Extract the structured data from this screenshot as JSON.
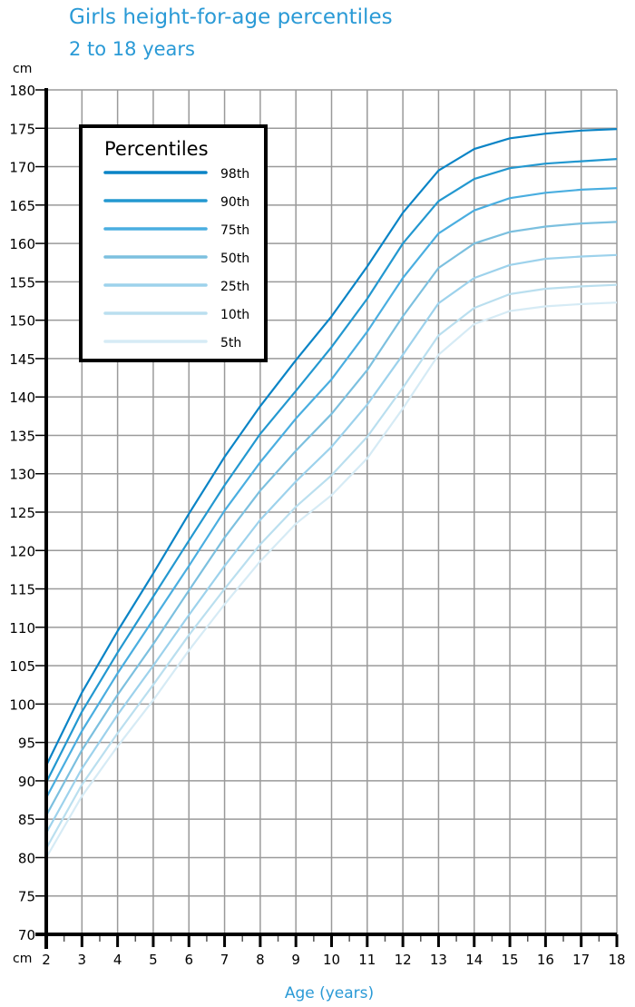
{
  "chart_data": {
    "type": "line",
    "title": "Girls height-for-age percentiles",
    "subtitle": "2 to 18 years",
    "xlabel": "Age (years)",
    "ylabel": "cm",
    "ylabel_bottom": "cm",
    "xlim": [
      2,
      18
    ],
    "ylim": [
      70,
      180
    ],
    "grid": true,
    "x_ticks": [
      2,
      3,
      4,
      5,
      6,
      7,
      8,
      9,
      10,
      11,
      12,
      13,
      14,
      15,
      16,
      17,
      18
    ],
    "y_ticks": [
      70,
      75,
      80,
      85,
      90,
      95,
      100,
      105,
      110,
      115,
      120,
      125,
      130,
      135,
      140,
      145,
      150,
      155,
      160,
      165,
      170,
      175,
      180
    ],
    "legend": {
      "title": "Percentiles",
      "placement": "top-left"
    },
    "x": [
      2,
      3,
      4,
      5,
      6,
      7,
      8,
      9,
      10,
      11,
      12,
      13,
      14,
      15,
      16,
      17,
      18
    ],
    "series": [
      {
        "name": "98th",
        "color": "#0a84c6",
        "values": [
          92,
          101.5,
          109.5,
          117,
          124.8,
          132.2,
          138.8,
          144.8,
          150.5,
          157,
          164,
          169.5,
          172.3,
          173.7,
          174.3,
          174.7,
          174.9
        ]
      },
      {
        "name": "90th",
        "color": "#2398d0",
        "values": [
          89.8,
          99,
          106.7,
          114,
          121.3,
          128.5,
          135.2,
          140.8,
          146.5,
          152.8,
          160,
          165.5,
          168.4,
          169.8,
          170.4,
          170.7,
          171
        ]
      },
      {
        "name": "75th",
        "color": "#4aaee0",
        "values": [
          87.8,
          96.5,
          104,
          111,
          118,
          125.2,
          131.5,
          137.2,
          142.3,
          148.5,
          155.5,
          161.3,
          164.3,
          165.9,
          166.6,
          167,
          167.2
        ]
      },
      {
        "name": "50th",
        "color": "#7cc0df",
        "values": [
          85.5,
          94,
          101.2,
          107.8,
          114.8,
          121.7,
          127.8,
          133,
          137.8,
          143.5,
          150.5,
          156.8,
          160,
          161.5,
          162.2,
          162.6,
          162.8
        ]
      },
      {
        "name": "25th",
        "color": "#9dd2ec",
        "values": [
          83.2,
          91.6,
          98.6,
          105,
          111.6,
          118,
          124,
          129,
          133.5,
          139,
          145.5,
          152.2,
          155.5,
          157.2,
          158,
          158.3,
          158.5
        ]
      },
      {
        "name": "10th",
        "color": "#badfef",
        "values": [
          81.2,
          89.5,
          96.2,
          102.5,
          109,
          115,
          120.8,
          125.7,
          129.8,
          134.8,
          141.2,
          148,
          151.6,
          153.4,
          154.1,
          154.4,
          154.6
        ]
      },
      {
        "name": "5th",
        "color": "#d6ebf5",
        "values": [
          80,
          88,
          94.5,
          100.5,
          107,
          113,
          118.6,
          123.5,
          127.2,
          132,
          138.5,
          145.5,
          149.5,
          151.2,
          151.8,
          152.1,
          152.3
        ]
      }
    ]
  }
}
